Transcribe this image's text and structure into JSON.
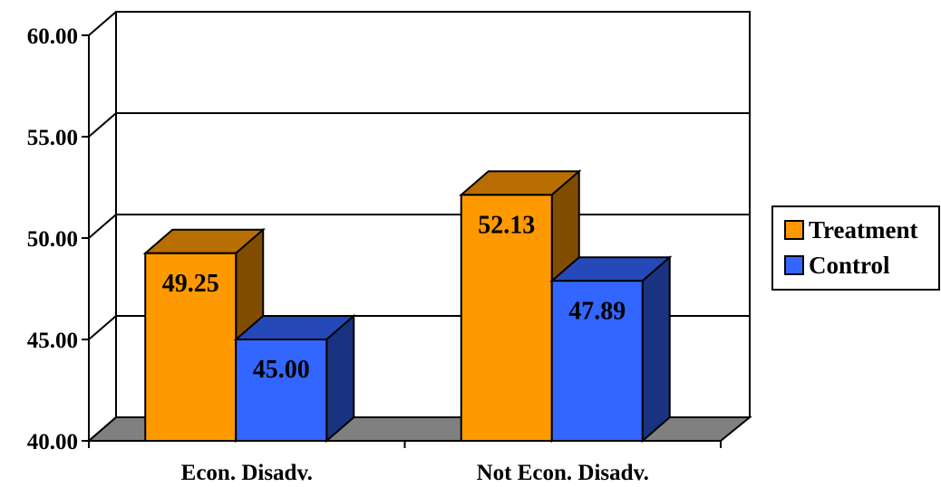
{
  "chart_data": {
    "type": "bar",
    "style": "3d-clustered-column",
    "categories": [
      "Econ. Disadv.",
      "Not Econ. Disadv."
    ],
    "series": [
      {
        "name": "Treatment",
        "values": [
          49.25,
          52.13
        ],
        "color": "#FF9900"
      },
      {
        "name": "Control",
        "values": [
          45.0,
          47.89
        ],
        "color": "#3366FF"
      }
    ],
    "data_labels": [
      [
        "49.25",
        "52.13"
      ],
      [
        "45.00",
        "47.89"
      ]
    ],
    "ylim": [
      40,
      60
    ],
    "yticks": [
      "40.00",
      "45.00",
      "50.00",
      "55.00",
      "60.00"
    ],
    "grid": true,
    "legend_position": "right",
    "floor_color": "#808080"
  }
}
